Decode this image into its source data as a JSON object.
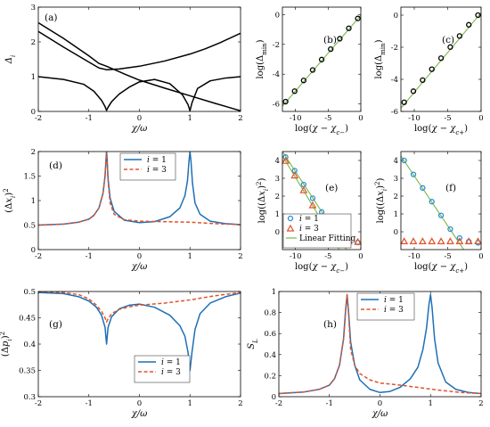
{
  "chart_data": [
    {
      "id": "a",
      "panel_label": "(a)",
      "type": "line",
      "xlabel": "χ/ω",
      "ylabel": "Δi",
      "xlim": [
        -2,
        2
      ],
      "ylim": [
        0,
        3
      ],
      "xticks": [
        "-2",
        "-1",
        "0",
        "1",
        "2"
      ],
      "yticks": [
        "0",
        "1",
        "2",
        "3"
      ],
      "xtick_values": [
        -2,
        -1,
        0,
        1,
        2
      ],
      "ytick_values": [
        0,
        1,
        2,
        3
      ],
      "color": "#000000",
      "series": [
        {
          "x": [
            -2,
            -1.5,
            -1,
            -0.8,
            -0.65,
            -0.3,
            0,
            0.5,
            1,
            1.5,
            2
          ],
          "y": [
            2.55,
            2.1,
            1.6,
            1.38,
            1.3,
            1.08,
            0.9,
            0.67,
            0.45,
            0.23,
            0.02
          ]
        },
        {
          "x": [
            -2,
            -1.5,
            -1,
            -0.8,
            -0.65,
            -0.4,
            0,
            0.5,
            1,
            1.3,
            1.6,
            2
          ],
          "y": [
            2.3,
            1.85,
            1.42,
            1.25,
            1.2,
            1.22,
            1.3,
            1.45,
            1.65,
            1.8,
            1.98,
            2.25
          ]
        },
        {
          "x": [
            -2,
            -1.5,
            -1.1,
            -0.9,
            -0.75,
            -0.68,
            -0.65,
            -0.62,
            -0.55,
            -0.4,
            -0.2,
            0,
            0.3,
            0.6,
            0.85,
            0.96,
            1,
            1.04,
            1.15,
            1.4,
            1.7,
            2
          ],
          "y": [
            1.0,
            0.92,
            0.78,
            0.58,
            0.32,
            0.14,
            0.03,
            0.12,
            0.28,
            0.5,
            0.7,
            0.85,
            0.92,
            0.8,
            0.48,
            0.2,
            0.02,
            0.25,
            0.66,
            0.88,
            0.96,
            1.0
          ]
        }
      ]
    },
    {
      "id": "b",
      "panel_label": "(b)",
      "type": "scatter+line",
      "xlabel": "log(χ − χc−)",
      "ylabel": "log(Δmin)",
      "xlim": [
        -12,
        0
      ],
      "ylim": [
        -6.5,
        0.5
      ],
      "xticks": [
        "-10",
        "-5",
        "0"
      ],
      "yticks": [
        "-6",
        "-4",
        "-2",
        "0"
      ],
      "xtick_values": [
        -10,
        -5,
        0
      ],
      "ytick_values": [
        -6,
        -4,
        -2,
        0
      ],
      "fit": {
        "x": [
          -12,
          0
        ],
        "y": [
          -6.15,
          -0.05
        ],
        "color": "#7ab648"
      },
      "points": {
        "x": [
          -11.51,
          -10.13,
          -8.75,
          -7.37,
          -5.99,
          -4.61,
          -3.22,
          -1.84,
          -0.46
        ],
        "y": [
          -5.84,
          -5.14,
          -4.42,
          -3.72,
          -3.02,
          -2.32,
          -1.62,
          -0.92,
          -0.26
        ],
        "color": "#000000",
        "marker": "circle"
      }
    },
    {
      "id": "c",
      "panel_label": "(c)",
      "type": "scatter+line",
      "xlabel": "log(χ − χc+)",
      "ylabel": "log(Δmin)",
      "xlim": [
        -12,
        0
      ],
      "ylim": [
        -6,
        0.5
      ],
      "xticks": [
        "-10",
        "-5",
        "0"
      ],
      "yticks": [
        "-6",
        "-4",
        "-2",
        "0"
      ],
      "xtick_values": [
        -10,
        -5,
        0
      ],
      "ytick_values": [
        -6,
        -4,
        -2,
        0
      ],
      "fit": {
        "x": [
          -12,
          0
        ],
        "y": [
          -5.8,
          0.15
        ],
        "color": "#7ab648"
      },
      "points": {
        "x": [
          -11.51,
          -10.13,
          -8.75,
          -7.37,
          -5.99,
          -4.61,
          -3.22,
          -1.84,
          -0.46
        ],
        "y": [
          -5.43,
          -4.74,
          -4.05,
          -3.37,
          -2.68,
          -1.99,
          -1.3,
          -0.6,
          0.0
        ],
        "color": "#000000",
        "marker": "circle"
      }
    },
    {
      "id": "d",
      "panel_label": "(d)",
      "type": "line",
      "xlabel": "χ/ω",
      "ylabel": "(Δxi)²",
      "xlim": [
        -2,
        2
      ],
      "ylim": [
        0,
        2
      ],
      "xticks": [
        "-2",
        "-1",
        "0",
        "1",
        "2"
      ],
      "yticks": [
        "0",
        "0.5",
        "1",
        "1.5",
        "2"
      ],
      "xtick_values": [
        -2,
        -1,
        0,
        1,
        2
      ],
      "ytick_values": [
        0,
        0.5,
        1,
        1.5,
        2
      ],
      "legend": [
        "i = 1",
        "i = 3"
      ],
      "legend_position": "top-center",
      "series": [
        {
          "name": "i = 1",
          "color": "#1f6fb4",
          "dash": "solid",
          "x": [
            -2,
            -1.5,
            -1.2,
            -1.0,
            -0.9,
            -0.8,
            -0.72,
            -0.68,
            -0.66,
            -0.65,
            -0.64,
            -0.62,
            -0.58,
            -0.5,
            -0.3,
            0,
            0.3,
            0.6,
            0.8,
            0.9,
            0.95,
            0.98,
            1.0,
            1.02,
            1.05,
            1.1,
            1.2,
            1.4,
            1.7,
            2
          ],
          "y": [
            0.5,
            0.52,
            0.56,
            0.62,
            0.7,
            0.85,
            1.15,
            1.5,
            1.85,
            2.0,
            1.85,
            1.45,
            1.05,
            0.78,
            0.6,
            0.55,
            0.57,
            0.67,
            0.85,
            1.1,
            1.4,
            1.8,
            2.0,
            1.8,
            1.35,
            0.95,
            0.72,
            0.58,
            0.53,
            0.51
          ]
        },
        {
          "name": "i = 3",
          "color": "#e0522a",
          "dash": "dashed",
          "x": [
            -2,
            -1.5,
            -1.2,
            -1.0,
            -0.9,
            -0.8,
            -0.72,
            -0.68,
            -0.66,
            -0.65,
            -0.64,
            -0.62,
            -0.58,
            -0.5,
            -0.3,
            0,
            0.5,
            1,
            1.5,
            2
          ],
          "y": [
            0.5,
            0.52,
            0.56,
            0.62,
            0.7,
            0.85,
            1.15,
            1.5,
            1.85,
            2.0,
            1.85,
            1.4,
            0.95,
            0.72,
            0.61,
            0.58,
            0.57,
            0.56,
            0.53,
            0.51
          ]
        }
      ]
    },
    {
      "id": "e",
      "panel_label": "(e)",
      "type": "scatter+line",
      "xlabel": "log(χ − χc−)",
      "ylabel": "log((Δxi)²)",
      "xlim": [
        -12,
        0
      ],
      "ylim": [
        -1,
        4.5
      ],
      "xticks": [
        "-10",
        "-5",
        "0"
      ],
      "yticks": [
        "0",
        "1",
        "2",
        "3",
        "4"
      ],
      "xtick_values": [
        -10,
        -5,
        0
      ],
      "ytick_values": [
        0,
        1,
        2,
        3,
        4
      ],
      "legend": [
        "i = 1",
        "i = 3",
        "Linear Fitting"
      ],
      "legend_position": "bottom-left",
      "fits": [
        {
          "x": [
            -12,
            -3.3
          ],
          "y": [
            4.25,
            -1.0
          ],
          "color": "#7ab648"
        },
        {
          "x": [
            -12,
            -2.2
          ],
          "y": [
            4.5,
            -1.0
          ],
          "color": "#7ab648"
        }
      ],
      "point_series": [
        {
          "name": "i = 1",
          "marker": "circle",
          "color": "#2d8ed0",
          "x": [
            -11.51,
            -10.13,
            -8.75,
            -7.37,
            -5.99,
            -4.61,
            -3.22,
            -1.84,
            -0.46
          ],
          "y": [
            4.19,
            3.43,
            2.65,
            1.88,
            1.11,
            0.34,
            -0.2,
            -0.45,
            -0.6
          ]
        },
        {
          "name": "i = 3",
          "marker": "triangle",
          "color": "#e0522a",
          "x": [
            -11.51,
            -10.13,
            -8.75,
            -7.37,
            -5.99,
            -4.61,
            -3.22,
            -1.84,
            -0.46
          ],
          "y": [
            3.96,
            3.14,
            2.31,
            1.47,
            0.64,
            -0.2,
            -0.48,
            -0.55,
            -0.58
          ]
        }
      ]
    },
    {
      "id": "f",
      "panel_label": "(f)",
      "type": "scatter+line",
      "xlabel": "log(χ − χc+)",
      "ylabel": "log((Δxi)²)",
      "xlim": [
        -12,
        0
      ],
      "ylim": [
        -1,
        4.5
      ],
      "xticks": [
        "-10",
        "-5",
        "0"
      ],
      "yticks": [
        "0",
        "1",
        "2",
        "3",
        "4"
      ],
      "xtick_values": [
        -10,
        -5,
        0
      ],
      "ytick_values": [
        0,
        1,
        2,
        3,
        4
      ],
      "fits": [
        {
          "x": [
            -12,
            -2.6
          ],
          "y": [
            4.25,
            -1.0
          ],
          "color": "#7ab648"
        }
      ],
      "point_series": [
        {
          "name": "i = 1",
          "marker": "circle",
          "color": "#2d8ed0",
          "x": [
            -11.51,
            -10.13,
            -8.75,
            -7.37,
            -5.99,
            -4.61,
            -3.22,
            -1.84,
            -0.46
          ],
          "y": [
            4.0,
            3.22,
            2.46,
            1.69,
            0.92,
            0.15,
            -0.35,
            -0.55,
            -0.62
          ]
        },
        {
          "name": "i = 3",
          "marker": "triangle",
          "color": "#e0522a",
          "x": [
            -11.51,
            -10.13,
            -8.75,
            -7.37,
            -5.99,
            -4.61,
            -3.22,
            -1.84,
            -0.46
          ],
          "y": [
            -0.55,
            -0.55,
            -0.55,
            -0.55,
            -0.55,
            -0.55,
            -0.55,
            -0.55,
            -0.55
          ]
        }
      ]
    },
    {
      "id": "g",
      "panel_label": "(g)",
      "type": "line",
      "xlabel": "χ/ω",
      "ylabel": "(Δpi)²",
      "xlim": [
        -2,
        2
      ],
      "ylim": [
        0.3,
        0.5
      ],
      "xticks": [
        "-2",
        "-1",
        "0",
        "1",
        "2"
      ],
      "yticks": [
        "0.3",
        "0.35",
        "0.4",
        "0.45",
        "0.5"
      ],
      "xtick_values": [
        -2,
        -1,
        0,
        1,
        2
      ],
      "ytick_values": [
        0.3,
        0.35,
        0.4,
        0.45,
        0.5
      ],
      "legend": [
        "i = 1",
        "i = 3"
      ],
      "legend_position": "bottom-center",
      "series": [
        {
          "name": "i = 1",
          "color": "#1f6fb4",
          "dash": "solid",
          "x": [
            -2,
            -1.5,
            -1.2,
            -1.0,
            -0.85,
            -0.75,
            -0.68,
            -0.65,
            -0.62,
            -0.55,
            -0.4,
            -0.2,
            0,
            0.3,
            0.6,
            0.8,
            0.9,
            0.96,
            1.0,
            1.04,
            1.1,
            1.2,
            1.4,
            1.7,
            2
          ],
          "y": [
            0.498,
            0.496,
            0.49,
            0.482,
            0.47,
            0.455,
            0.432,
            0.4,
            0.432,
            0.452,
            0.467,
            0.474,
            0.476,
            0.47,
            0.455,
            0.435,
            0.415,
            0.385,
            0.35,
            0.385,
            0.428,
            0.458,
            0.478,
            0.49,
            0.497
          ]
        },
        {
          "name": "i = 3",
          "color": "#e0522a",
          "dash": "dashed",
          "x": [
            -2,
            -1.5,
            -1.2,
            -1.0,
            -0.85,
            -0.75,
            -0.68,
            -0.65,
            -0.62,
            -0.55,
            -0.4,
            -0.2,
            0,
            0.5,
            1,
            1.5,
            2
          ],
          "y": [
            0.5,
            0.498,
            0.494,
            0.486,
            0.474,
            0.462,
            0.45,
            0.442,
            0.448,
            0.458,
            0.466,
            0.471,
            0.474,
            0.478,
            0.484,
            0.492,
            0.498
          ]
        }
      ]
    },
    {
      "id": "h",
      "panel_label": "(h)",
      "type": "line",
      "xlabel": "χ/ω",
      "ylabel": "SL",
      "xlim": [
        -2,
        2
      ],
      "ylim": [
        0,
        1
      ],
      "xticks": [
        "-2",
        "-1",
        "0",
        "1",
        "2"
      ],
      "yticks": [
        "0",
        "0.2",
        "0.4",
        "0.6",
        "0.8",
        "1"
      ],
      "xtick_values": [
        -2,
        -1,
        0,
        1,
        2
      ],
      "ytick_values": [
        0,
        0.2,
        0.4,
        0.6,
        0.8,
        1
      ],
      "legend": [
        "i = 1",
        "i = 3"
      ],
      "legend_position": "top-right",
      "series": [
        {
          "name": "i = 1",
          "color": "#1f6fb4",
          "dash": "solid",
          "x": [
            -2,
            -1.5,
            -1.2,
            -1.0,
            -0.9,
            -0.8,
            -0.72,
            -0.68,
            -0.65,
            -0.62,
            -0.58,
            -0.5,
            -0.4,
            -0.2,
            0,
            0.2,
            0.4,
            0.6,
            0.75,
            0.85,
            0.92,
            0.97,
            1.0,
            1.03,
            1.08,
            1.15,
            1.3,
            1.5,
            1.75,
            2
          ],
          "y": [
            0.03,
            0.045,
            0.07,
            0.11,
            0.17,
            0.3,
            0.55,
            0.82,
            0.97,
            0.8,
            0.52,
            0.3,
            0.16,
            0.07,
            0.04,
            0.05,
            0.09,
            0.17,
            0.28,
            0.45,
            0.65,
            0.88,
            0.97,
            0.85,
            0.55,
            0.32,
            0.14,
            0.07,
            0.04,
            0.03
          ]
        },
        {
          "name": "i = 3",
          "color": "#e0522a",
          "dash": "dashed",
          "x": [
            -2,
            -1.5,
            -1.2,
            -1.0,
            -0.9,
            -0.8,
            -0.72,
            -0.68,
            -0.65,
            -0.62,
            -0.58,
            -0.5,
            -0.4,
            -0.2,
            0,
            0.4,
            0.8,
            1.2,
            1.6,
            2
          ],
          "y": [
            0.03,
            0.045,
            0.07,
            0.11,
            0.17,
            0.3,
            0.55,
            0.82,
            0.97,
            0.78,
            0.45,
            0.3,
            0.22,
            0.16,
            0.13,
            0.11,
            0.085,
            0.06,
            0.04,
            0.03
          ]
        }
      ]
    }
  ]
}
